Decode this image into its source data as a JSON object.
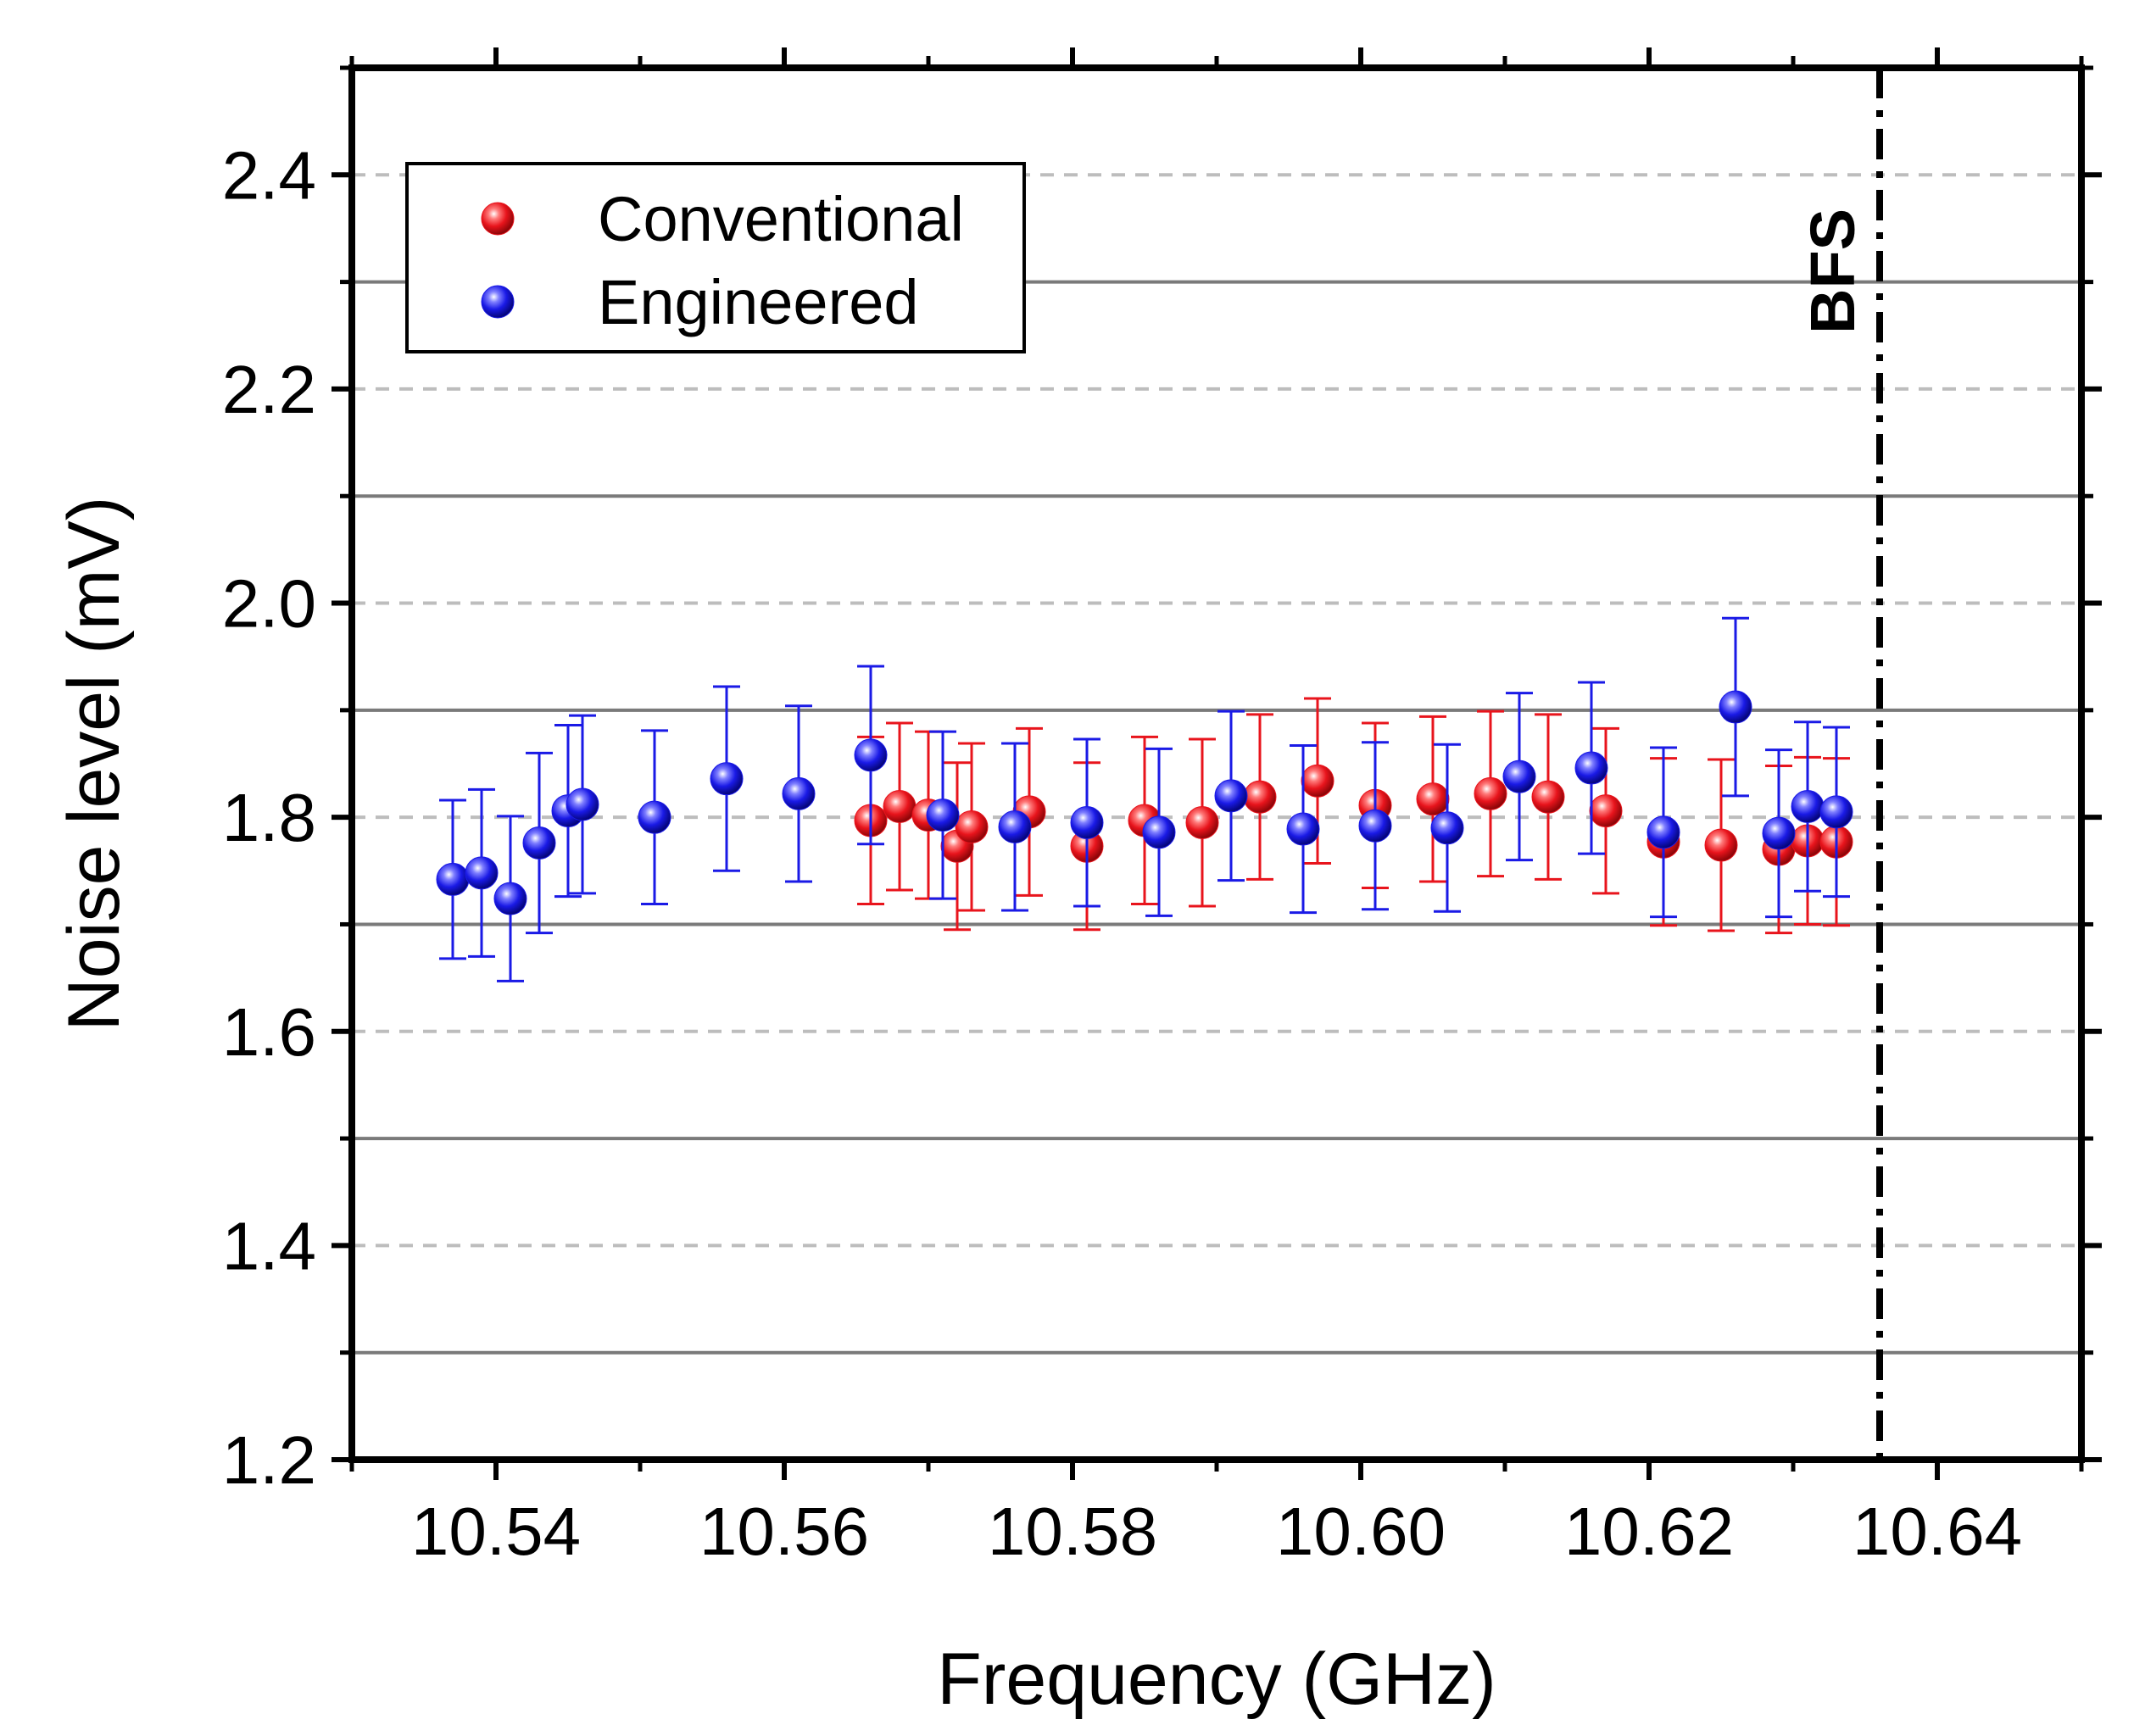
{
  "chart_data": {
    "type": "scatter",
    "title": "",
    "xlabel": "Frequency (GHz)",
    "ylabel": "Noise level (mV)",
    "xlim": [
      10.53,
      10.65
    ],
    "ylim": [
      1.2,
      2.5
    ],
    "x_ticks": [
      10.54,
      10.56,
      10.58,
      10.6,
      10.62,
      10.64
    ],
    "x_tick_labels": [
      "10.54",
      "10.56",
      "10.58",
      "10.60",
      "10.62",
      "10.64"
    ],
    "y_ticks": [
      1.2,
      1.4,
      1.6,
      1.8,
      2.0,
      2.2,
      2.4
    ],
    "y_tick_labels": [
      "1.2",
      "1.4",
      "1.6",
      "1.8",
      "2.0",
      "2.2",
      "2.4"
    ],
    "gridlines_solid": [
      1.3,
      1.5,
      1.7,
      1.9,
      2.1,
      2.3
    ],
    "gridlines_dashed": [
      1.4,
      1.6,
      1.8,
      2.0,
      2.2,
      2.4
    ],
    "legend_position": "top-left",
    "annotations": [
      {
        "label": "BFS",
        "x": 10.636,
        "style": "dash-dot vertical line"
      }
    ],
    "series": [
      {
        "name": "Conventional",
        "color": "#e8141c",
        "points": [
          {
            "x": 10.566,
            "y": 1.797,
            "err": 0.078
          },
          {
            "x": 10.568,
            "y": 1.81,
            "err": 0.078
          },
          {
            "x": 10.57,
            "y": 1.802,
            "err": 0.078
          },
          {
            "x": 10.572,
            "y": 1.773,
            "err": 0.078
          },
          {
            "x": 10.573,
            "y": 1.791,
            "err": 0.078
          },
          {
            "x": 10.577,
            "y": 1.805,
            "err": 0.078
          },
          {
            "x": 10.581,
            "y": 1.773,
            "err": 0.078
          },
          {
            "x": 10.585,
            "y": 1.797,
            "err": 0.078
          },
          {
            "x": 10.589,
            "y": 1.795,
            "err": 0.078
          },
          {
            "x": 10.593,
            "y": 1.819,
            "err": 0.077
          },
          {
            "x": 10.597,
            "y": 1.834,
            "err": 0.077
          },
          {
            "x": 10.601,
            "y": 1.811,
            "err": 0.077
          },
          {
            "x": 10.605,
            "y": 1.817,
            "err": 0.077
          },
          {
            "x": 10.609,
            "y": 1.822,
            "err": 0.077
          },
          {
            "x": 10.613,
            "y": 1.819,
            "err": 0.077
          },
          {
            "x": 10.617,
            "y": 1.806,
            "err": 0.077
          },
          {
            "x": 10.621,
            "y": 1.777,
            "err": 0.078
          },
          {
            "x": 10.625,
            "y": 1.774,
            "err": 0.08
          },
          {
            "x": 10.629,
            "y": 1.77,
            "err": 0.078
          },
          {
            "x": 10.631,
            "y": 1.778,
            "err": 0.078
          },
          {
            "x": 10.633,
            "y": 1.777,
            "err": 0.078
          }
        ]
      },
      {
        "name": "Engineered",
        "color": "#1a1ae6",
        "points": [
          {
            "x": 10.537,
            "y": 1.742,
            "err": 0.074
          },
          {
            "x": 10.539,
            "y": 1.748,
            "err": 0.078
          },
          {
            "x": 10.541,
            "y": 1.724,
            "err": 0.077
          },
          {
            "x": 10.543,
            "y": 1.776,
            "err": 0.084
          },
          {
            "x": 10.545,
            "y": 1.806,
            "err": 0.08
          },
          {
            "x": 10.546,
            "y": 1.812,
            "err": 0.083
          },
          {
            "x": 10.551,
            "y": 1.8,
            "err": 0.081
          },
          {
            "x": 10.556,
            "y": 1.836,
            "err": 0.086
          },
          {
            "x": 10.561,
            "y": 1.822,
            "err": 0.082
          },
          {
            "x": 10.566,
            "y": 1.858,
            "err": 0.083
          },
          {
            "x": 10.571,
            "y": 1.802,
            "err": 0.078
          },
          {
            "x": 10.576,
            "y": 1.791,
            "err": 0.078
          },
          {
            "x": 10.581,
            "y": 1.795,
            "err": 0.078
          },
          {
            "x": 10.586,
            "y": 1.786,
            "err": 0.078
          },
          {
            "x": 10.591,
            "y": 1.82,
            "err": 0.079
          },
          {
            "x": 10.596,
            "y": 1.789,
            "err": 0.078
          },
          {
            "x": 10.601,
            "y": 1.792,
            "err": 0.078
          },
          {
            "x": 10.606,
            "y": 1.79,
            "err": 0.078
          },
          {
            "x": 10.611,
            "y": 1.838,
            "err": 0.078
          },
          {
            "x": 10.616,
            "y": 1.846,
            "err": 0.08
          },
          {
            "x": 10.621,
            "y": 1.786,
            "err": 0.079
          },
          {
            "x": 10.626,
            "y": 1.903,
            "err": 0.083
          },
          {
            "x": 10.629,
            "y": 1.785,
            "err": 0.078
          },
          {
            "x": 10.631,
            "y": 1.81,
            "err": 0.079
          },
          {
            "x": 10.633,
            "y": 1.805,
            "err": 0.079
          }
        ]
      }
    ]
  }
}
